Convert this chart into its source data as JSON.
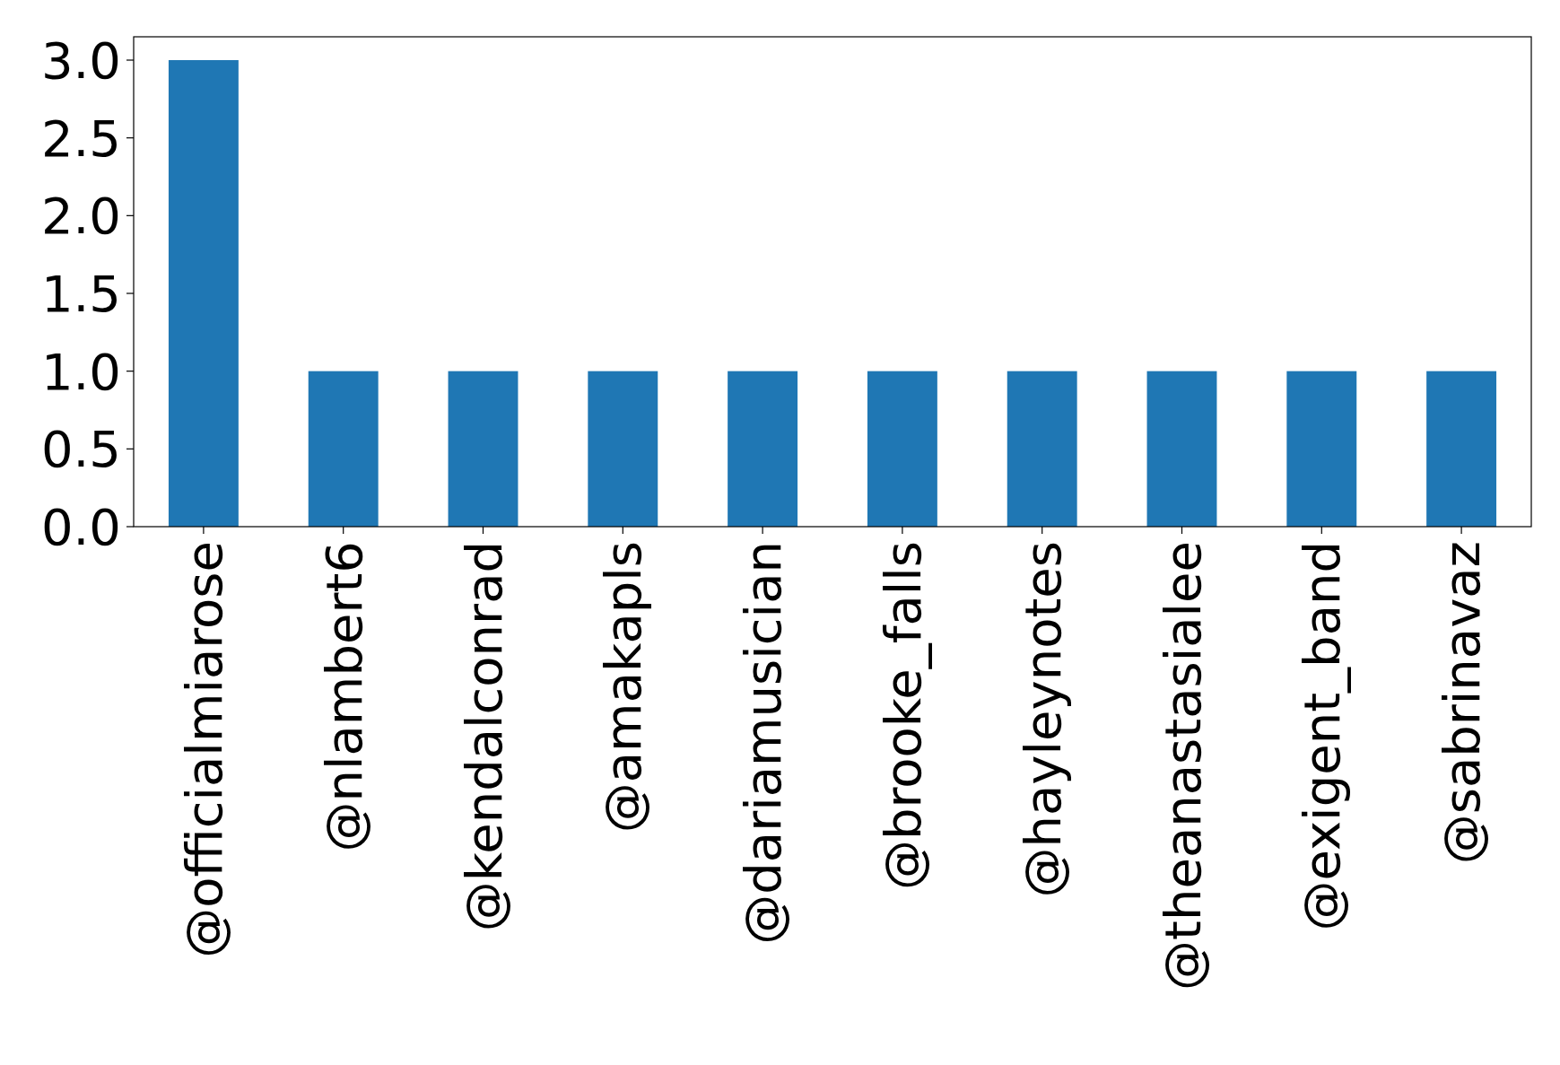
{
  "chart_data": {
    "type": "bar",
    "categories": [
      "@officialmiarose",
      "@nlambert6",
      "@kendalconrad",
      "@amakapls",
      "@dariamusician",
      "@brooke_falls",
      "@hayleynotes",
      "@theanastasialee",
      "@exigent_band",
      "@sabrinavaz"
    ],
    "values": [
      3,
      1,
      1,
      1,
      1,
      1,
      1,
      1,
      1,
      1
    ],
    "color": "#1f77b4",
    "ylim": [
      0,
      3.15
    ],
    "yticks": [
      {
        "value": 0,
        "label": "0.0"
      },
      {
        "value": 0.5,
        "label": "0.5"
      },
      {
        "value": 1,
        "label": "1.0"
      },
      {
        "value": 1.5,
        "label": "1.5"
      },
      {
        "value": 2,
        "label": "2.0"
      },
      {
        "value": 2.5,
        "label": "2.5"
      },
      {
        "value": 3,
        "label": "3.0"
      }
    ],
    "grid": false
  }
}
